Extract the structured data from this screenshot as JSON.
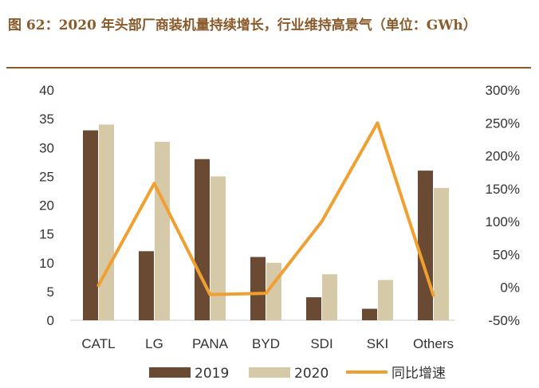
{
  "title": "图 62：2020 年头部厂商装机量持续增长，行业维持高景气（单位：GWh）",
  "colors": {
    "title": "#8b5a2b",
    "series2019": "#6b4a33",
    "series2020": "#d6c9a8",
    "growth": "#f0a030"
  },
  "chart_data": {
    "type": "bar",
    "categories": [
      "CATL",
      "LG",
      "PANA",
      "BYD",
      "SDI",
      "SKI",
      "Others"
    ],
    "series": [
      {
        "name": "2019",
        "type": "bar",
        "axis": "left",
        "values": [
          33,
          12,
          28,
          11,
          4,
          2,
          26
        ]
      },
      {
        "name": "2020",
        "type": "bar",
        "axis": "left",
        "values": [
          34,
          31,
          25,
          10,
          8,
          7,
          23
        ]
      },
      {
        "name": "同比增速",
        "type": "line",
        "axis": "right",
        "values": [
          0.03,
          1.58,
          -0.11,
          -0.09,
          1.0,
          2.5,
          -0.12
        ]
      }
    ],
    "ylim": [
      0,
      40
    ],
    "yticks": [
      "0",
      "5",
      "10",
      "15",
      "20",
      "25",
      "30",
      "35",
      "40"
    ],
    "y2lim": [
      -0.5,
      3.0
    ],
    "y2ticks": [
      "-50%",
      "0%",
      "50%",
      "100%",
      "150%",
      "200%",
      "250%",
      "300%"
    ],
    "grid": false,
    "legend_position": "bottom"
  }
}
